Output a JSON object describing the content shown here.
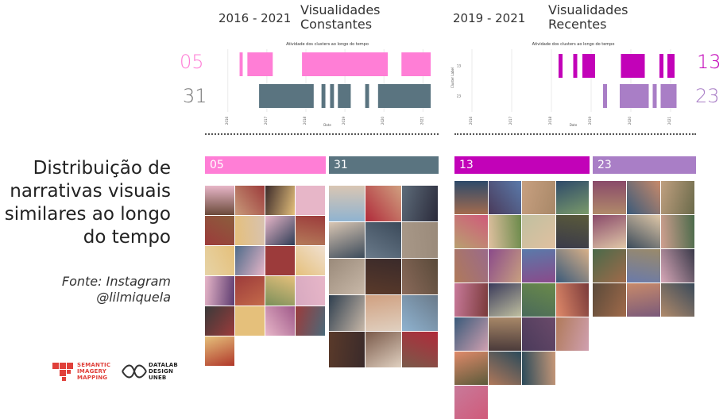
{
  "left_panel": {
    "period": "2016 - 2021",
    "title_line1": "Visualidades",
    "title_line2": "Constantes",
    "chart_title": "Atividade dos clusters ao longo do tempo",
    "cluster_a": "05",
    "cluster_b": "31"
  },
  "right_panel": {
    "period": "2019 - 2021",
    "title_line1": "Visualidades",
    "title_line2": "Recentes",
    "chart_title": "Atividade dos clusters ao longo do tempo",
    "cluster_a": "13",
    "cluster_b": "23"
  },
  "bands": [
    {
      "label": "05",
      "color": "#ff7ed6"
    },
    {
      "label": "31",
      "color": "#5a7480"
    },
    {
      "label": "13",
      "color": "#c202b8"
    },
    {
      "label": "23",
      "color": "#a97ec6"
    }
  ],
  "main_title": [
    "Distribuição de",
    "narrativas visuais",
    "similares ao longo",
    "do tempo"
  ],
  "source_line1": "Fonte: Instagram",
  "source_line2": "@lilmiquela",
  "logos": {
    "sim": [
      "SEMANTIC",
      "IMAGERY",
      "MAPPING"
    ],
    "datalab": [
      "DATALAB",
      "DESIGN",
      "UNEB"
    ]
  },
  "colors": {
    "pink": "#ff7ed6",
    "slate": "#5a7480",
    "magenta": "#c202b8",
    "lavender": "#a97ec6",
    "logo_red": "#e0403a"
  },
  "chart_data": [
    {
      "type": "bar",
      "title": "Atividade dos clusters ao longo do tempo",
      "xlabel": "Date",
      "ylabel": "",
      "x_ticks": [
        "2016",
        "2017",
        "2018",
        "2019",
        "2020",
        "2021"
      ],
      "xlim": [
        2015.8,
        2021.3
      ],
      "series": [
        {
          "name": "05",
          "color": "#ff7ed6",
          "intervals": [
            [
              2016.3,
              2016.38
            ],
            [
              2016.5,
              2017.15
            ],
            [
              2017.9,
              2020.1
            ],
            [
              2020.45,
              2021.2
            ]
          ]
        },
        {
          "name": "31",
          "color": "#5a7480",
          "intervals": [
            [
              2016.8,
              2018.2
            ],
            [
              2018.4,
              2018.5
            ],
            [
              2018.62,
              2018.72
            ],
            [
              2018.82,
              2019.15
            ],
            [
              2019.52,
              2019.62
            ],
            [
              2019.85,
              2021.2
            ]
          ]
        }
      ]
    },
    {
      "type": "bar",
      "title": "Atividade dos clusters ao longo do tempo",
      "xlabel": "Date",
      "ylabel": "Cluster Label",
      "y_ticks": [
        "13",
        "23"
      ],
      "x_ticks": [
        "2016",
        "2017",
        "2018",
        "2019",
        "2020",
        "2021"
      ],
      "xlim": [
        2015.8,
        2021.3
      ],
      "series": [
        {
          "name": "13",
          "color": "#c202b8",
          "intervals": [
            [
              2018.18,
              2018.28
            ],
            [
              2018.55,
              2018.65
            ],
            [
              2018.78,
              2019.1
            ],
            [
              2019.75,
              2020.35
            ],
            [
              2020.72,
              2020.82
            ],
            [
              2020.92,
              2021.1
            ]
          ]
        },
        {
          "name": "23",
          "color": "#a97ec6",
          "intervals": [
            [
              2019.3,
              2019.4
            ],
            [
              2019.72,
              2020.45
            ],
            [
              2020.55,
              2020.65
            ],
            [
              2020.75,
              2021.15
            ]
          ]
        }
      ]
    }
  ]
}
